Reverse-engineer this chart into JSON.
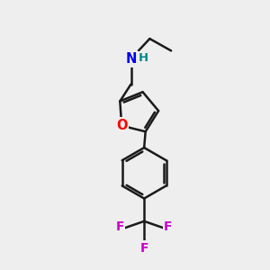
{
  "background_color": "#eeeeee",
  "bond_color": "#1a1a1a",
  "N_color": "#0000ee",
  "H_color": "#008888",
  "O_color": "#ff0000",
  "F_color": "#cc00cc",
  "bond_width": 1.8,
  "figsize": [
    3.0,
    3.0
  ],
  "dpi": 100,
  "xlim": [
    0,
    10
  ],
  "ylim": [
    0,
    10
  ]
}
